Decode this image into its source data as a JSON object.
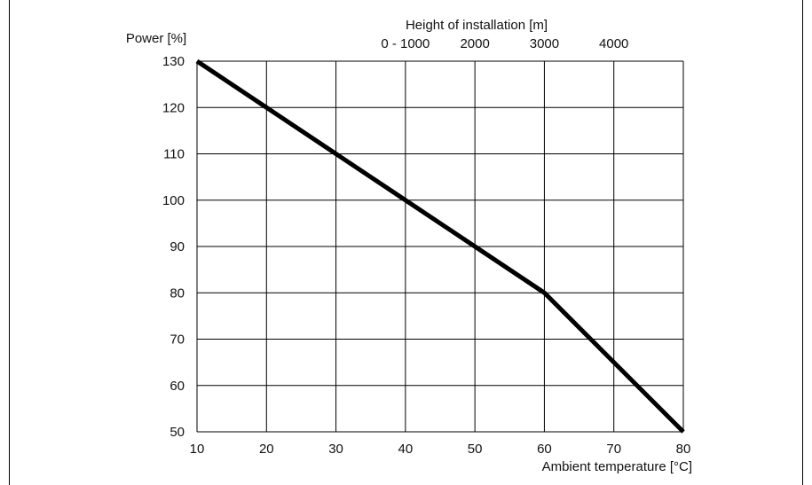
{
  "chart_data": {
    "type": "line",
    "title": "",
    "xlabel": "Ambient temperature [°C]",
    "ylabel": "Power [%]",
    "xlim": [
      10,
      80
    ],
    "ylim": [
      50,
      130
    ],
    "x_ticks": [
      10,
      20,
      30,
      40,
      50,
      60,
      70,
      80
    ],
    "y_ticks": [
      50,
      60,
      70,
      80,
      90,
      100,
      110,
      120,
      130
    ],
    "grid": true,
    "secondary_x_axis": {
      "label": "Height of installation [m]",
      "ticks": [
        {
          "label": "0 - 1000",
          "at_x": 40
        },
        {
          "label": "2000",
          "at_x": 50
        },
        {
          "label": "3000",
          "at_x": 60
        },
        {
          "label": "4000",
          "at_x": 70
        }
      ]
    },
    "series": [
      {
        "x": [
          10,
          20,
          30,
          40,
          50,
          60,
          70,
          80
        ],
        "y": [
          130,
          120,
          110,
          100,
          90,
          80,
          65,
          50
        ],
        "color": "#000000"
      }
    ]
  }
}
